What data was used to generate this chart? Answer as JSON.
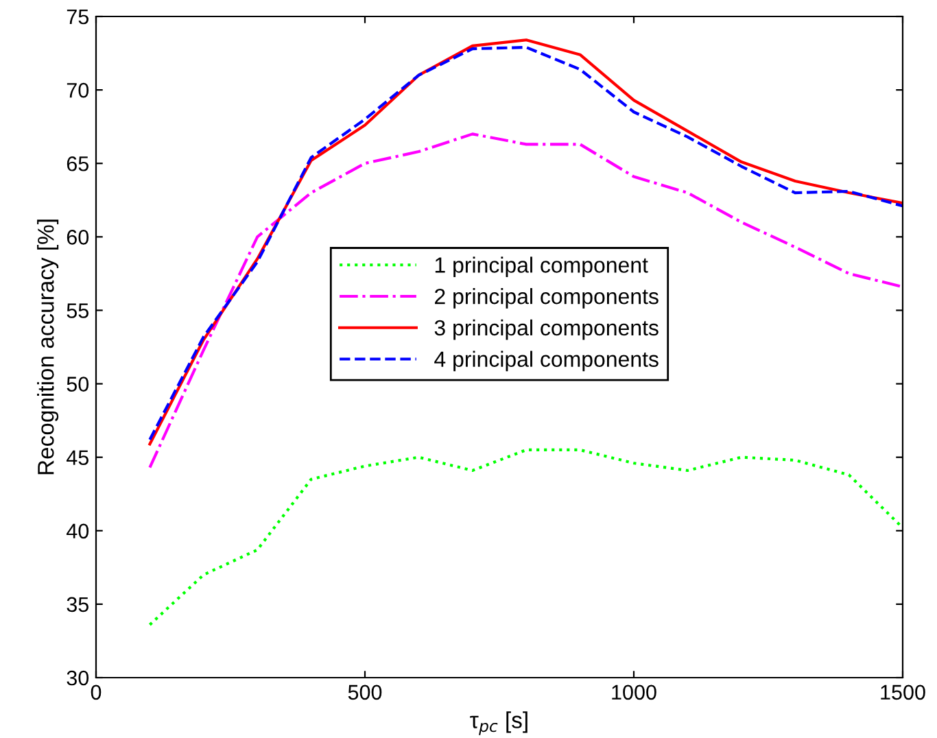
{
  "chart_data": {
    "type": "line",
    "xlabel": "τ$_{pc}$ [s]",
    "ylabel": "Recognition accuracy [%]",
    "x": [
      100,
      200,
      300,
      400,
      500,
      600,
      700,
      800,
      900,
      1000,
      1100,
      1200,
      1300,
      1400,
      1500
    ],
    "series": [
      {
        "name": "1 principal component",
        "color": "#00ff00",
        "line_style": "dotted",
        "values": [
          33.6,
          37,
          38.7,
          43.5,
          44.4,
          45,
          44.1,
          45.5,
          45.5,
          44.6,
          44.1,
          45,
          44.8,
          43.8,
          40.2
        ]
      },
      {
        "name": "2 principal components",
        "color": "#ff00ff",
        "line_style": "dashdot",
        "values": [
          44.3,
          52.3,
          60,
          63,
          65,
          65.8,
          67,
          66.3,
          66.3,
          64.1,
          63,
          61,
          59.3,
          57.5,
          56.6
        ]
      },
      {
        "name": "3 principal components",
        "color": "#ff0000",
        "line_style": "solid",
        "values": [
          45.9,
          53,
          58.5,
          65.2,
          67.6,
          71,
          73,
          73.4,
          72.4,
          69.3,
          67.2,
          65.1,
          63.8,
          63,
          62.3
        ]
      },
      {
        "name": "4 principal components",
        "color": "#0000ff",
        "line_style": "dashed",
        "values": [
          46.2,
          53.2,
          58.3,
          65.4,
          68,
          71,
          72.8,
          72.9,
          71.4,
          68.5,
          66.8,
          64.8,
          63,
          63.1,
          62.1
        ]
      }
    ],
    "xlim": [
      0,
      1500
    ],
    "ylim": [
      30,
      75
    ],
    "xticks": [
      0,
      500,
      1000,
      1500
    ],
    "yticks": [
      30,
      35,
      40,
      45,
      50,
      55,
      60,
      65,
      70,
      75
    ],
    "grid": false,
    "legend": "center",
    "marker": "none"
  }
}
